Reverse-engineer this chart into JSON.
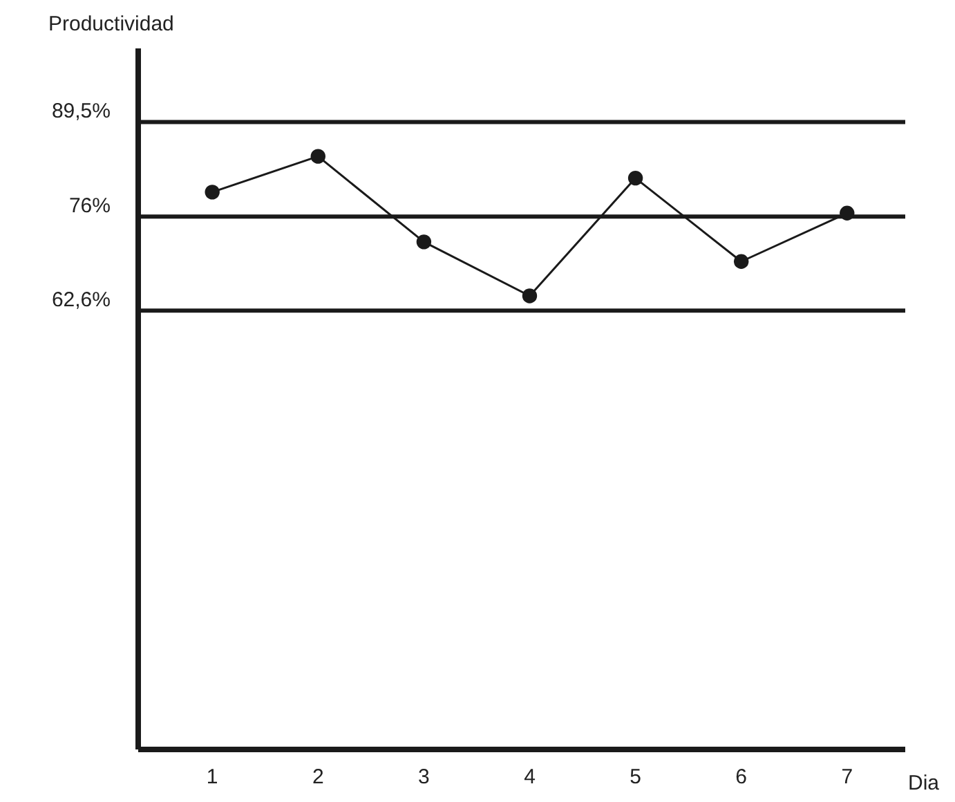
{
  "chart_data": {
    "type": "line",
    "ylabel": "Productividad",
    "xlabel": "Dia",
    "x": [
      1,
      2,
      3,
      4,
      5,
      6,
      7
    ],
    "values": [
      79.5,
      84.6,
      72.4,
      64.7,
      81.5,
      69.6,
      76.5
    ],
    "color": "#1a1a1a",
    "marker": "circle",
    "grid": "y",
    "xlim": [
      0.3,
      7.55
    ],
    "xticks": [
      1,
      2,
      3,
      4,
      5,
      6,
      7
    ],
    "ylim": [
      0,
      100
    ],
    "yticks": [
      {
        "value": 62.6,
        "label": "62,6%"
      },
      {
        "value": 76,
        "label": "76%"
      },
      {
        "value": 89.5,
        "label": "89,5%"
      }
    ]
  }
}
